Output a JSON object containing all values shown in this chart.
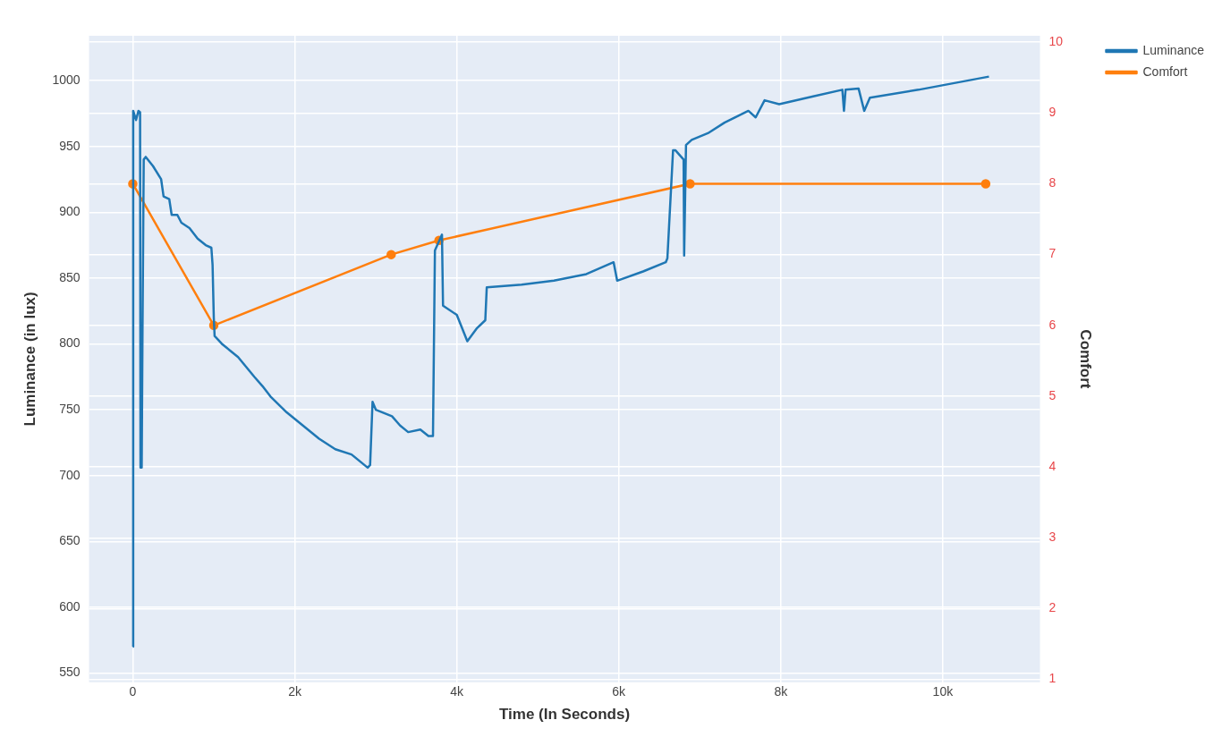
{
  "chart_data": {
    "type": "line",
    "xlabel": "Time (In Seconds)",
    "ylabel": "Luminance (in lux)",
    "y2label": "Comfort",
    "xlim": [
      -540,
      11200
    ],
    "xticks": [
      0,
      {
        "value": 2000,
        "label": "2k"
      },
      {
        "value": 4000,
        "label": "4k"
      },
      {
        "value": 6000,
        "label": "6k"
      },
      {
        "value": 8000,
        "label": "8k"
      },
      {
        "value": 10000,
        "label": "10k"
      }
    ],
    "ylim": [
      543,
      1034
    ],
    "yticks": [
      550,
      600,
      650,
      700,
      750,
      800,
      850,
      900,
      950,
      1000
    ],
    "y2lim": [
      0.96,
      10.09
    ],
    "y2ticks": [
      1,
      2,
      3,
      4,
      5,
      6,
      7,
      8,
      9,
      10
    ],
    "grid": true,
    "legend": "top right",
    "series": [
      {
        "name": "Luminance",
        "color": "#1f77b4",
        "marker": "none",
        "x": [
          0,
          5,
          40,
          70,
          90,
          95,
          110,
          120,
          135,
          160,
          250,
          350,
          380,
          450,
          480,
          550,
          600,
          700,
          800,
          900,
          970,
          985,
          1000,
          1010,
          1100,
          1300,
          1500,
          1600,
          1700,
          1900,
          2100,
          2300,
          2500,
          2700,
          2900,
          2930,
          2960,
          3000,
          3200,
          3300,
          3400,
          3550,
          3650,
          3706,
          3730,
          3817,
          3830,
          4000,
          4130,
          4250,
          4352,
          4370,
          4800,
          5200,
          5600,
          5936,
          5980,
          6300,
          6580,
          6600,
          6670,
          6700,
          6800,
          6807,
          6830,
          6900,
          7100,
          7305,
          7600,
          7690,
          7800,
          7980,
          8400,
          8760,
          8780,
          8800,
          8960,
          9030,
          9100,
          9700,
          10570
        ],
        "values": [
          570,
          977,
          970,
          977,
          976,
          706,
          706,
          810,
          940,
          942,
          935,
          925,
          912,
          910,
          898,
          898,
          892,
          888,
          880,
          875,
          873,
          860,
          820,
          806,
          800,
          790,
          775,
          768,
          760,
          748,
          738,
          728,
          720,
          716,
          706,
          708,
          756,
          750,
          745,
          738,
          733,
          735,
          730,
          730,
          871,
          883,
          829,
          822,
          802,
          812,
          818,
          843,
          845,
          848,
          853,
          862,
          848,
          855,
          862,
          865,
          947,
          947,
          940,
          867,
          951,
          955,
          960,
          968,
          977,
          972,
          985,
          982,
          988,
          993,
          977,
          993,
          994,
          977,
          987,
          993,
          1003
        ]
      },
      {
        "name": "Comfort",
        "color": "#ff7f0e",
        "marker": "circle",
        "axis": "y2",
        "x": [
          0,
          1000,
          3190,
          3780,
          6880,
          10530
        ],
        "values": [
          8,
          6,
          7,
          7.2,
          8,
          8
        ]
      }
    ]
  }
}
